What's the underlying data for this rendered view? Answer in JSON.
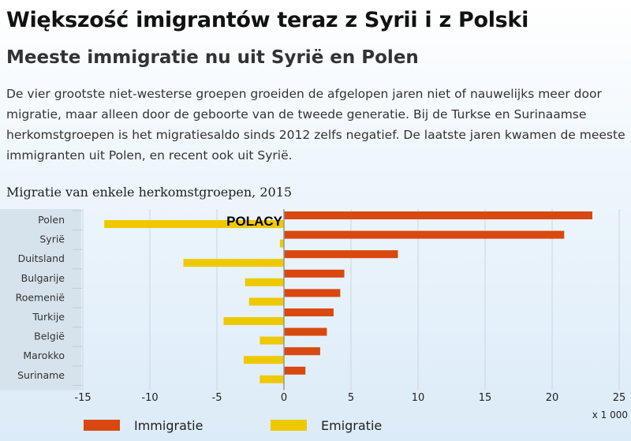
{
  "title": "Większość imigrantów teraz z Syrii i z Polski",
  "subtitle": "Meeste immigratie nu uit Syrië en Polen",
  "paragraph": "De vier grootste niet-westerse groepen groeiden de afgelopen jaren niet of nauwelijks meer door migratie, maar alleen door de geboorte van de tweede generatie. Bij de Turkse en Surinaamse herkomstgroepen is het migratiesaldo sinds 2012 zelfs negatief. De laatste jaren kwamen de meeste immigranten uit Polen, en recent ook uit Syrië.",
  "chart_data": {
    "type": "bar",
    "orientation": "horizontal",
    "title": "Migratie van enkele herkomstgroepen, 2015",
    "categories": [
      "Polen",
      "Syrië",
      "Duitsland",
      "Bulgarije",
      "Roemenië",
      "Turkije",
      "België",
      "Marokko",
      "Suriname"
    ],
    "series": [
      {
        "name": "Immigratie",
        "color": "#d9480f",
        "values": [
          23.0,
          20.9,
          8.5,
          4.5,
          4.2,
          3.7,
          3.2,
          2.7,
          1.6
        ]
      },
      {
        "name": "Emigratie",
        "color": "#eec900",
        "values": [
          -13.4,
          -0.3,
          -7.5,
          -2.9,
          -2.6,
          -4.5,
          -1.8,
          -3.0,
          -1.8
        ]
      }
    ],
    "xlim": [
      -15,
      25
    ],
    "xticks": [
      -15,
      -10,
      -5,
      0,
      5,
      10,
      15,
      20,
      25
    ],
    "xunit": "x 1 000",
    "grid": true,
    "legend": "bottom",
    "annotation": "POLACY"
  }
}
